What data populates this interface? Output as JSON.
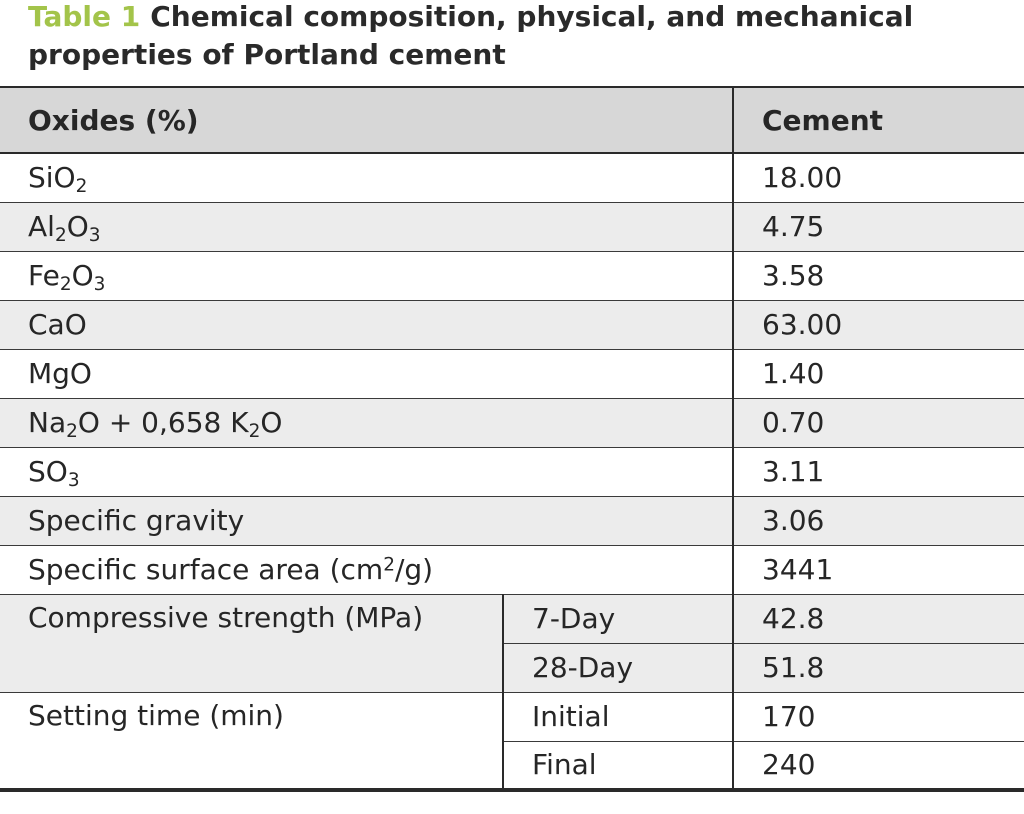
{
  "caption": {
    "label": "Table 1",
    "text": "Chemical composition, physical, and mechanical properties of Portland cement"
  },
  "header": {
    "col1": "Oxides (%)",
    "col2": "Cement"
  },
  "rows": [
    {
      "parts": [
        "SiO",
        "2",
        ""
      ],
      "value": "18.00"
    },
    {
      "parts": [
        "Al",
        "2",
        "O",
        "3",
        ""
      ],
      "value": "4.75"
    },
    {
      "parts": [
        "Fe",
        "2",
        "O",
        "3",
        ""
      ],
      "value": "3.58"
    },
    {
      "label": "CaO",
      "value": "63.00"
    },
    {
      "label": "MgO",
      "value": "1.40"
    },
    {
      "parts": [
        "Na",
        "2",
        "O + 0,658 K",
        "2",
        "O"
      ],
      "value": "0.70"
    },
    {
      "parts": [
        "SO",
        "3",
        ""
      ],
      "value": "3.11"
    },
    {
      "label": "Specific gravity",
      "value": "3.06"
    },
    {
      "sup_parts": [
        "Specific surface area (cm",
        "2",
        "/g)"
      ],
      "value": "3441"
    }
  ],
  "groups": [
    {
      "label": "Compressive strength (MPa)",
      "items": [
        {
          "sublabel": "7-Day",
          "value": "42.8"
        },
        {
          "sublabel": "28-Day",
          "value": "51.8"
        }
      ]
    },
    {
      "label": "Setting time (min)",
      "items": [
        {
          "sublabel": "Initial",
          "value": "170"
        },
        {
          "sublabel": "Final",
          "value": "240"
        }
      ]
    }
  ]
}
